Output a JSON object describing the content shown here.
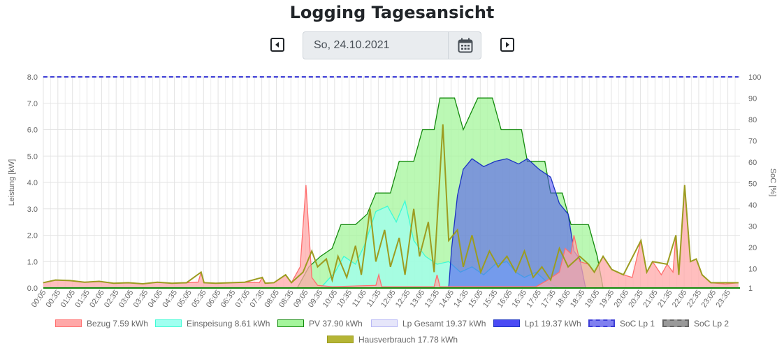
{
  "page": {
    "title": "Logging Tagesansicht",
    "date_value": "So, 24.10.2021",
    "prev_icon": "caret-left-square-icon",
    "next_icon": "caret-right-square-icon",
    "calendar_icon": "calendar-icon"
  },
  "chart_data": {
    "type": "area",
    "ylabel": "Leistung [kW]",
    "y2label": "SoC [%]",
    "ylim": [
      0,
      8
    ],
    "y2lim": [
      1,
      100
    ],
    "yticks": [
      "0.0",
      "1.0",
      "2.0",
      "3.0",
      "4.0",
      "5.0",
      "6.0",
      "7.0",
      "8.0"
    ],
    "y2ticks": [
      "1",
      "10",
      "20",
      "30",
      "40",
      "50",
      "60",
      "70",
      "80",
      "90",
      "100"
    ],
    "x_ticks": [
      "00:05",
      "00:35",
      "01:05",
      "01:35",
      "02:05",
      "02:35",
      "03:05",
      "03:35",
      "04:05",
      "04:35",
      "05:05",
      "05:35",
      "06:05",
      "06:35",
      "07:05",
      "07:35",
      "08:05",
      "08:35",
      "09:05",
      "09:35",
      "10:05",
      "10:35",
      "11:05",
      "11:35",
      "12:05",
      "12:35",
      "13:05",
      "13:35",
      "14:05",
      "14:35",
      "15:05",
      "15:35",
      "16:05",
      "16:35",
      "17:05",
      "17:35",
      "18:05",
      "18:35",
      "19:05",
      "19:35",
      "20:05",
      "20:35",
      "21:05",
      "21:35",
      "22:05",
      "22:35",
      "23:05",
      "23:35"
    ],
    "grid": true,
    "legend_position": "bottom",
    "series": [
      {
        "name": "Bezug 7.59 kWh",
        "color": "#ff6e6e",
        "fill": "#ffa8a8",
        "points": [
          [
            0.08,
            0.2
          ],
          [
            0.5,
            0.3
          ],
          [
            1.0,
            0.28
          ],
          [
            1.5,
            0.22
          ],
          [
            2.0,
            0.25
          ],
          [
            2.5,
            0.18
          ],
          [
            3.0,
            0.2
          ],
          [
            3.5,
            0.16
          ],
          [
            4.0,
            0.22
          ],
          [
            4.5,
            0.18
          ],
          [
            5.0,
            0.2
          ],
          [
            5.4,
            0.22
          ],
          [
            5.5,
            0.6
          ],
          [
            5.6,
            0.2
          ],
          [
            6.0,
            0.18
          ],
          [
            6.5,
            0.2
          ],
          [
            7.0,
            0.22
          ],
          [
            7.5,
            0.2
          ],
          [
            7.6,
            0.4
          ],
          [
            7.7,
            0.18
          ],
          [
            8.0,
            0.2
          ],
          [
            8.4,
            0.5
          ],
          [
            8.6,
            0.2
          ],
          [
            8.9,
            0.8
          ],
          [
            9.1,
            3.9
          ],
          [
            9.3,
            0.4
          ],
          [
            9.5,
            0.1
          ],
          [
            10.0,
            0.05
          ],
          [
            11.5,
            0.1
          ],
          [
            11.6,
            0.5
          ],
          [
            11.7,
            0.05
          ],
          [
            13.5,
            0.05
          ],
          [
            13.6,
            0.5
          ],
          [
            13.7,
            0.05
          ],
          [
            17.0,
            0.05
          ],
          [
            17.4,
            0.3
          ],
          [
            17.8,
            0.6
          ],
          [
            18.0,
            1.5
          ],
          [
            18.2,
            1.3
          ],
          [
            18.3,
            2.0
          ],
          [
            18.5,
            1.0
          ],
          [
            18.8,
            0.9
          ],
          [
            19.0,
            0.6
          ],
          [
            19.3,
            1.2
          ],
          [
            19.6,
            0.7
          ],
          [
            20.0,
            0.5
          ],
          [
            20.3,
            0.4
          ],
          [
            20.6,
            1.8
          ],
          [
            20.8,
            0.6
          ],
          [
            21.0,
            1.0
          ],
          [
            21.3,
            0.5
          ],
          [
            21.5,
            0.9
          ],
          [
            21.7,
            0.6
          ],
          [
            21.8,
            2.0
          ],
          [
            21.9,
            0.5
          ],
          [
            22.1,
            3.9
          ],
          [
            22.3,
            1.0
          ],
          [
            22.5,
            1.1
          ],
          [
            22.7,
            0.5
          ],
          [
            23.0,
            0.2
          ],
          [
            23.5,
            0.15
          ],
          [
            23.95,
            0.2
          ]
        ]
      },
      {
        "name": "Einspeisung 8.61 kWh",
        "color": "#3ffbd4",
        "fill": "#9ffff0",
        "points": [
          [
            9.6,
            0
          ],
          [
            10.1,
            0.6
          ],
          [
            10.4,
            1.2
          ],
          [
            10.8,
            0.9
          ],
          [
            11.1,
            1.6
          ],
          [
            11.5,
            2.9
          ],
          [
            11.9,
            3.1
          ],
          [
            12.2,
            2.5
          ],
          [
            12.5,
            3.3
          ],
          [
            12.8,
            1.8
          ],
          [
            13.2,
            1.2
          ],
          [
            13.6,
            0.9
          ],
          [
            14.0,
            1.0
          ],
          [
            14.4,
            0.6
          ],
          [
            14.8,
            0.8
          ],
          [
            15.2,
            0.5
          ],
          [
            15.6,
            0.9
          ],
          [
            16.0,
            1.0
          ],
          [
            16.3,
            0.6
          ],
          [
            16.6,
            0.4
          ],
          [
            17.0,
            0.6
          ],
          [
            17.4,
            0.2
          ],
          [
            17.8,
            0
          ]
        ]
      },
      {
        "name": "PV 37.90 kWh",
        "color": "#138a0c",
        "fill": "#a4f59b",
        "points": [
          [
            8.8,
            0
          ],
          [
            9.2,
            0.8
          ],
          [
            9.6,
            1.2
          ],
          [
            10.0,
            1.5
          ],
          [
            10.3,
            2.4
          ],
          [
            10.8,
            2.4
          ],
          [
            11.2,
            2.8
          ],
          [
            11.5,
            3.6
          ],
          [
            12.0,
            3.6
          ],
          [
            12.3,
            4.8
          ],
          [
            12.8,
            4.8
          ],
          [
            13.1,
            6.0
          ],
          [
            13.5,
            6.0
          ],
          [
            13.7,
            7.2
          ],
          [
            14.2,
            7.2
          ],
          [
            14.5,
            6.0
          ],
          [
            15.0,
            7.2
          ],
          [
            15.5,
            7.2
          ],
          [
            15.8,
            6.0
          ],
          [
            16.5,
            6.0
          ],
          [
            16.7,
            4.8
          ],
          [
            17.3,
            4.8
          ],
          [
            17.5,
            3.6
          ],
          [
            17.9,
            3.6
          ],
          [
            18.2,
            2.4
          ],
          [
            18.8,
            2.4
          ],
          [
            19.1,
            1.2
          ],
          [
            19.3,
            0
          ]
        ]
      },
      {
        "name": "Lp Gesamt 19.37 kWh",
        "color": "#b8b8f5",
        "fill": "#e6e6fa",
        "points": []
      },
      {
        "name": "Lp1 19.37 kWh",
        "color": "#1c33c2",
        "fill": "#4b4bf5",
        "points": [
          [
            14.0,
            0
          ],
          [
            14.1,
            1.5
          ],
          [
            14.3,
            3.5
          ],
          [
            14.5,
            4.5
          ],
          [
            14.8,
            4.9
          ],
          [
            15.2,
            4.6
          ],
          [
            15.6,
            4.8
          ],
          [
            16.0,
            4.9
          ],
          [
            16.4,
            4.7
          ],
          [
            16.7,
            4.9
          ],
          [
            17.1,
            4.5
          ],
          [
            17.5,
            4.2
          ],
          [
            17.8,
            3.2
          ],
          [
            18.1,
            2.8
          ],
          [
            18.3,
            1.4
          ],
          [
            18.5,
            1.1
          ],
          [
            18.7,
            0
          ]
        ]
      },
      {
        "name": "SoC Lp 1",
        "color": "#3d3dd6",
        "fill": "#8080f0",
        "points": [
          [
            0.08,
            100
          ],
          [
            23.95,
            100
          ]
        ]
      },
      {
        "name": "SoC Lp 2",
        "color": "#666666",
        "fill": "#999999",
        "points": []
      },
      {
        "name": "Hausverbrauch 17.78 kWh",
        "color": "#9c9c20",
        "fill": "#b5b535",
        "points": [
          [
            0.08,
            0.2
          ],
          [
            0.5,
            0.3
          ],
          [
            1.0,
            0.28
          ],
          [
            1.5,
            0.22
          ],
          [
            2.0,
            0.25
          ],
          [
            2.5,
            0.18
          ],
          [
            3.0,
            0.2
          ],
          [
            3.5,
            0.16
          ],
          [
            4.0,
            0.22
          ],
          [
            4.5,
            0.18
          ],
          [
            5.0,
            0.2
          ],
          [
            5.5,
            0.6
          ],
          [
            5.6,
            0.2
          ],
          [
            6.0,
            0.18
          ],
          [
            6.5,
            0.2
          ],
          [
            7.0,
            0.22
          ],
          [
            7.6,
            0.4
          ],
          [
            7.7,
            0.18
          ],
          [
            8.0,
            0.2
          ],
          [
            8.4,
            0.5
          ],
          [
            8.6,
            0.2
          ],
          [
            9.0,
            0.6
          ],
          [
            9.3,
            1.4
          ],
          [
            9.5,
            0.8
          ],
          [
            9.8,
            1.1
          ],
          [
            10.0,
            0.3
          ],
          [
            10.2,
            1.2
          ],
          [
            10.5,
            0.4
          ],
          [
            10.8,
            1.6
          ],
          [
            11.0,
            0.5
          ],
          [
            11.3,
            3.0
          ],
          [
            11.5,
            1.0
          ],
          [
            11.8,
            2.2
          ],
          [
            12.0,
            0.8
          ],
          [
            12.3,
            1.9
          ],
          [
            12.5,
            0.5
          ],
          [
            12.8,
            3.0
          ],
          [
            13.0,
            1.2
          ],
          [
            13.3,
            2.5
          ],
          [
            13.5,
            0.6
          ],
          [
            13.8,
            6.2
          ],
          [
            14.0,
            1.8
          ],
          [
            14.3,
            2.2
          ],
          [
            14.5,
            0.8
          ],
          [
            14.8,
            2.0
          ],
          [
            15.1,
            0.6
          ],
          [
            15.4,
            1.4
          ],
          [
            15.7,
            0.8
          ],
          [
            16.0,
            1.2
          ],
          [
            16.3,
            0.6
          ],
          [
            16.6,
            1.4
          ],
          [
            16.9,
            0.4
          ],
          [
            17.2,
            0.8
          ],
          [
            17.5,
            0.3
          ],
          [
            17.8,
            1.5
          ],
          [
            18.1,
            0.8
          ],
          [
            18.5,
            1.2
          ],
          [
            18.8,
            0.9
          ],
          [
            19.0,
            0.6
          ],
          [
            19.3,
            1.2
          ],
          [
            19.6,
            0.7
          ],
          [
            20.0,
            0.5
          ],
          [
            20.6,
            1.8
          ],
          [
            20.8,
            0.6
          ],
          [
            21.0,
            1.0
          ],
          [
            21.5,
            0.9
          ],
          [
            21.8,
            2.0
          ],
          [
            21.9,
            0.5
          ],
          [
            22.1,
            3.9
          ],
          [
            22.3,
            1.0
          ],
          [
            22.5,
            1.1
          ],
          [
            22.7,
            0.5
          ],
          [
            23.0,
            0.2
          ],
          [
            23.95,
            0.2
          ]
        ]
      }
    ]
  }
}
